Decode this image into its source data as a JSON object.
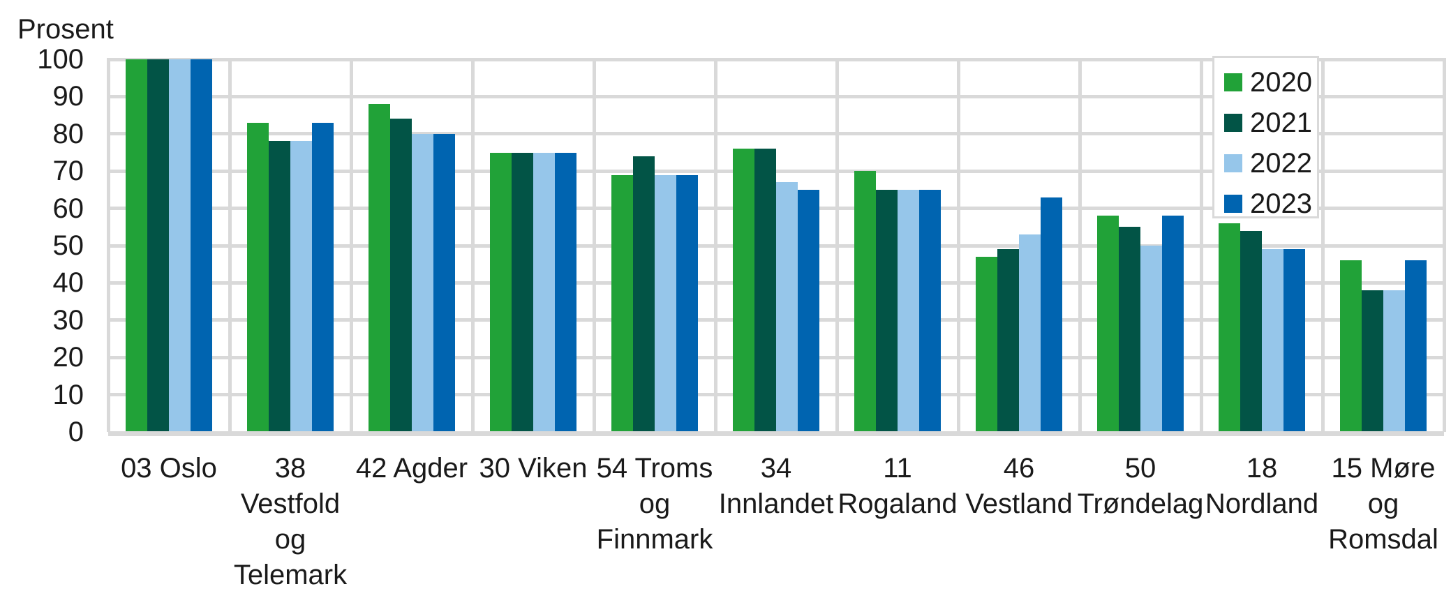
{
  "chart_data": {
    "type": "bar",
    "title": "",
    "ylabel": "Prosent",
    "xlabel": "",
    "ylim": [
      0,
      100
    ],
    "ytick_step": 10,
    "ytick_labels": [
      "0",
      "10",
      "20",
      "30",
      "40",
      "50",
      "60",
      "70",
      "80",
      "90",
      "100"
    ],
    "grid": "on",
    "grid_color": "#d9d9d9",
    "legend_position": "top-right",
    "categories": [
      "03 Oslo",
      "38 Vestfold og Telemark",
      "42 Agder",
      "30 Viken",
      "54 Troms og Finnmark",
      "34 Innlandet",
      "11 Rogaland",
      "46 Vestland",
      "50 Trøndelag",
      "18 Nordland",
      "15 Møre og Romsdal"
    ],
    "category_label_lines": [
      [
        "03 Oslo"
      ],
      [
        "38",
        "Vestfold",
        "og",
        "Telemark"
      ],
      [
        "42 Agder"
      ],
      [
        "30 Viken"
      ],
      [
        "54 Troms",
        "og",
        "Finnmark"
      ],
      [
        "34",
        "Innlandet"
      ],
      [
        "11",
        "Rogaland"
      ],
      [
        "46",
        "Vestland"
      ],
      [
        "50",
        "Trøndelag"
      ],
      [
        "18",
        "Nordland"
      ],
      [
        "15 Møre",
        "og",
        "Romsdal"
      ]
    ],
    "series": [
      {
        "name": "2020",
        "color": "#21a238",
        "values": [
          100,
          83,
          88,
          75,
          69,
          76,
          70,
          47,
          58,
          56,
          46
        ]
      },
      {
        "name": "2021",
        "color": "#025446",
        "values": [
          100,
          78,
          84,
          75,
          74,
          76,
          65,
          49,
          55,
          54,
          38
        ]
      },
      {
        "name": "2022",
        "color": "#96c6ea",
        "values": [
          100,
          78,
          80,
          75,
          69,
          67,
          65,
          53,
          50,
          49,
          38
        ]
      },
      {
        "name": "2023",
        "color": "#0064b0",
        "values": [
          100,
          83,
          80,
          75,
          69,
          65,
          65,
          63,
          58,
          49,
          46
        ]
      }
    ]
  }
}
